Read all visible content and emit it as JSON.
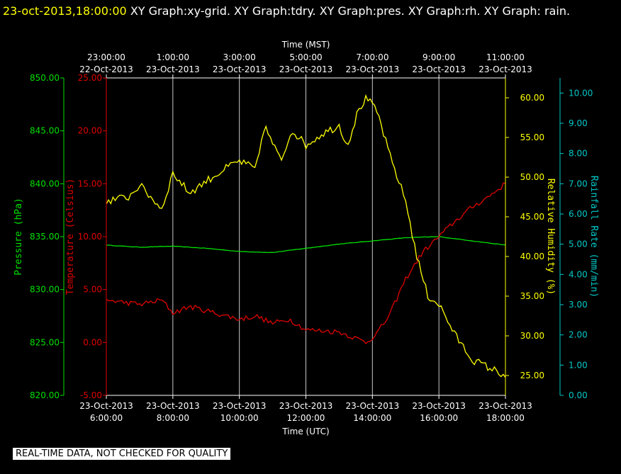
{
  "header": {
    "timestamp": "23-oct-2013,18:00:00",
    "title": "XY Graph:xy-grid.  XY Graph:tdry.  XY Graph:pres.  XY Graph:rh.  XY Graph: rain."
  },
  "disclaimer": "REAL-TIME DATA, NOT CHECKED FOR QUALITY",
  "colors": {
    "background": "#000000",
    "pressure": "#00e000",
    "temperature": "#e00000",
    "humidity": "#ffff00",
    "rainfall": "#00c8c8",
    "grid": "#c8c8c8"
  },
  "chart_data": {
    "type": "line",
    "grid": true,
    "x_axis_bottom": {
      "label": "Time (UTC)",
      "range": [
        "2013-10-23 06:00",
        "2013-10-23 18:00"
      ],
      "ticks": [
        {
          "t": "2013-10-23 06:00",
          "date": "23-Oct-2013",
          "time": "6:00:00"
        },
        {
          "t": "2013-10-23 08:00",
          "date": "23-Oct-2013",
          "time": "8:00:00"
        },
        {
          "t": "2013-10-23 10:00",
          "date": "23-Oct-2013",
          "time": "10:00:00"
        },
        {
          "t": "2013-10-23 12:00",
          "date": "23-Oct-2013",
          "time": "12:00:00"
        },
        {
          "t": "2013-10-23 14:00",
          "date": "23-Oct-2013",
          "time": "14:00:00"
        },
        {
          "t": "2013-10-23 16:00",
          "date": "23-Oct-2013",
          "time": "16:00:00"
        },
        {
          "t": "2013-10-23 18:00",
          "date": "23-Oct-2013",
          "time": "18:00:00"
        }
      ]
    },
    "x_axis_top": {
      "label": "Time (MST)",
      "ticks": [
        {
          "t": "2013-10-23 06:00",
          "time": "23:00:00",
          "date": "22-Oct-2013"
        },
        {
          "t": "2013-10-23 08:00",
          "time": "1:00:00",
          "date": "23-Oct-2013"
        },
        {
          "t": "2013-10-23 10:00",
          "time": "3:00:00",
          "date": "23-Oct-2013"
        },
        {
          "t": "2013-10-23 12:00",
          "time": "5:00:00",
          "date": "23-Oct-2013"
        },
        {
          "t": "2013-10-23 14:00",
          "time": "7:00:00",
          "date": "23-Oct-2013"
        },
        {
          "t": "2013-10-23 16:00",
          "time": "9:00:00",
          "date": "23-Oct-2013"
        },
        {
          "t": "2013-10-23 18:00",
          "time": "11:00:00",
          "date": "23-Oct-2013"
        }
      ]
    },
    "y_axes": {
      "pressure": {
        "label": "Pressure (hPa)",
        "range": [
          820,
          850
        ],
        "ticks": [
          "820.00",
          "825.00",
          "830.00",
          "835.00",
          "840.00",
          "845.00",
          "850.00"
        ]
      },
      "temperature": {
        "label": "Temperature (Celsius)",
        "range": [
          -5,
          25
        ],
        "ticks": [
          "-5.00",
          "0.00",
          "5.00",
          "10.00",
          "15.00",
          "20.00",
          "25.00"
        ]
      },
      "humidity": {
        "label": "Relative Humidity (%)",
        "range": [
          22.5,
          62.5
        ],
        "ticks": [
          "25.00",
          "30.00",
          "35.00",
          "40.00",
          "45.00",
          "50.00",
          "55.00",
          "60.00"
        ]
      },
      "rainfall": {
        "label": "Rainfall Rate (mm/min)",
        "range": [
          0,
          10.5
        ],
        "ticks": [
          "0.00",
          "1.00",
          "2.00",
          "3.00",
          "4.00",
          "5.00",
          "6.00",
          "7.00",
          "8.00",
          "9.00",
          "10.00"
        ]
      }
    },
    "series": [
      {
        "name": "pres",
        "axis": "pressure",
        "color": "#00e000",
        "noise": 0.02,
        "x": [
          "2013-10-23 06:00",
          "2013-10-23 07:00",
          "2013-10-23 08:00",
          "2013-10-23 09:00",
          "2013-10-23 10:00",
          "2013-10-23 11:00",
          "2013-10-23 12:00",
          "2013-10-23 13:00",
          "2013-10-23 14:00",
          "2013-10-23 15:00",
          "2013-10-23 16:00",
          "2013-10-23 17:00",
          "2013-10-23 18:00"
        ],
        "y": [
          834.2,
          834.0,
          834.1,
          833.9,
          833.6,
          833.5,
          833.9,
          834.3,
          834.6,
          834.9,
          835.0,
          834.6,
          834.2
        ]
      },
      {
        "name": "tdry",
        "axis": "temperature",
        "color": "#e00000",
        "noise": 0.25,
        "x": [
          "2013-10-23 06:00",
          "2013-10-23 07:00",
          "2013-10-23 07:40",
          "2013-10-23 08:00",
          "2013-10-23 08:30",
          "2013-10-23 09:00",
          "2013-10-23 10:00",
          "2013-10-23 10:30",
          "2013-10-23 11:00",
          "2013-10-23 11:30",
          "2013-10-23 12:00",
          "2013-10-23 13:00",
          "2013-10-23 13:50",
          "2013-10-23 14:10",
          "2013-10-23 14:30",
          "2013-10-23 15:00",
          "2013-10-23 15:30",
          "2013-10-23 16:00",
          "2013-10-23 16:30",
          "2013-10-23 17:00",
          "2013-10-23 17:30",
          "2013-10-23 18:00"
        ],
        "y": [
          4.0,
          3.6,
          4.0,
          2.8,
          3.4,
          3.0,
          2.2,
          2.5,
          1.8,
          2.2,
          1.2,
          1.0,
          0.0,
          1.0,
          2.5,
          6.0,
          8.5,
          10.0,
          11.5,
          12.8,
          13.8,
          15.0
        ]
      },
      {
        "name": "rh",
        "axis": "humidity",
        "color": "#ffff00",
        "noise": 0.5,
        "x": [
          "2013-10-23 06:00",
          "2013-10-23 06:40",
          "2013-10-23 07:00",
          "2013-10-23 07:40",
          "2013-10-23 08:00",
          "2013-10-23 08:30",
          "2013-10-23 09:00",
          "2013-10-23 09:45",
          "2013-10-23 10:00",
          "2013-10-23 10:30",
          "2013-10-23 10:45",
          "2013-10-23 11:15",
          "2013-10-23 11:35",
          "2013-10-23 12:00",
          "2013-10-23 12:30",
          "2013-10-23 13:00",
          "2013-10-23 13:15",
          "2013-10-23 13:35",
          "2013-10-23 13:50",
          "2013-10-23 14:10",
          "2013-10-23 14:30",
          "2013-10-23 15:00",
          "2013-10-23 15:20",
          "2013-10-23 15:40",
          "2013-10-23 16:00",
          "2013-10-23 16:30",
          "2013-10-23 17:00",
          "2013-10-23 17:30",
          "2013-10-23 18:00"
        ],
        "y": [
          47.0,
          47.5,
          49.0,
          46.0,
          50.5,
          48.0,
          49.5,
          51.5,
          52.0,
          51.0,
          56.5,
          52.0,
          56.0,
          54.0,
          55.5,
          56.5,
          54.0,
          58.5,
          60.0,
          58.0,
          53.0,
          47.0,
          40.0,
          35.0,
          34.0,
          30.0,
          27.0,
          26.0,
          25.0
        ]
      }
    ]
  }
}
